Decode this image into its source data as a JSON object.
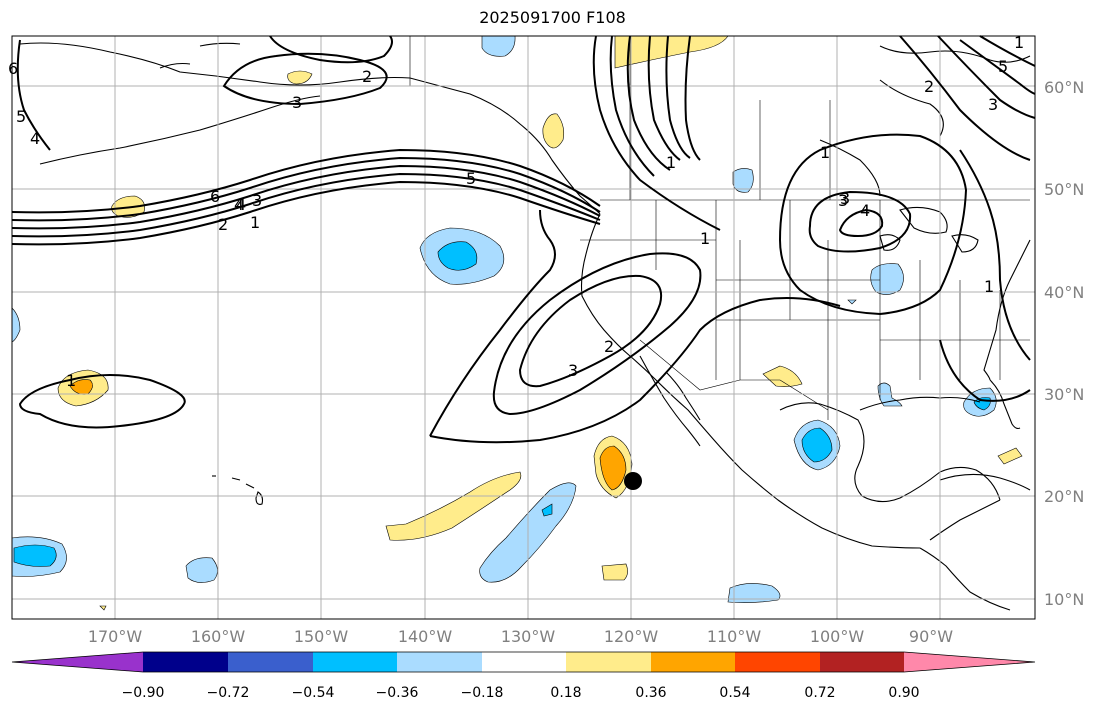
{
  "title": "2025091700 F108",
  "lat_labels": [
    "60°N",
    "50°N",
    "40°N",
    "30°N",
    "20°N",
    "10°N"
  ],
  "lon_labels": [
    "170°W",
    "160°W",
    "150°W",
    "140°W",
    "130°W",
    "120°W",
    "110°W",
    "100°W",
    "90°W"
  ],
  "colorbar": {
    "tick_labels": [
      "−0.90",
      "−0.72",
      "−0.54",
      "−0.36",
      "−0.18",
      "0.18",
      "0.36",
      "0.54",
      "0.72",
      "0.90"
    ],
    "colors": [
      "#9932cc",
      "#00008b",
      "#3a5fcd",
      "#00bfff",
      "#aadcff",
      "#ffffff",
      "#ffec8b",
      "#ffa500",
      "#ff4500",
      "#b22222",
      "#ff88aa"
    ]
  },
  "contour_labels": [
    "6",
    "5",
    "4",
    "3",
    "2",
    "1",
    "5",
    "1",
    "2",
    "4",
    "5",
    "3",
    "1",
    "3",
    "4",
    "3",
    "2",
    "1",
    "1",
    "6",
    "4",
    "3",
    "2",
    "1",
    "3",
    "1"
  ],
  "colors": {
    "neg_light": "#aadcff",
    "neg_mid": "#00bfff",
    "pos_light": "#ffec8b",
    "pos_mid": "#ffa500",
    "pos_high": "#ff4500",
    "grid": "#b0b0b0",
    "marker": "#000000"
  }
}
